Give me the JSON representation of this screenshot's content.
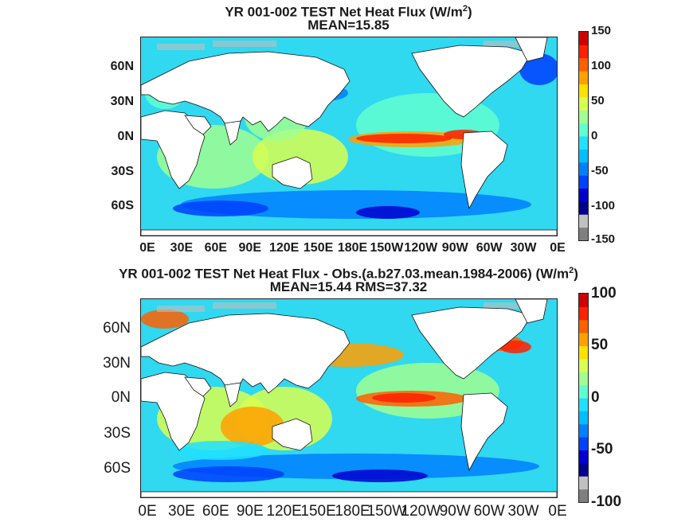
{
  "panels": [
    {
      "title_main": "YR 001-002 TEST  Net Heat Flux (W/m",
      "title_sup": "2",
      "title_close": ")",
      "subtitle": "MEAN=15.85",
      "y_ticks": [
        "60N",
        "30N",
        "0N",
        "30S",
        "60S"
      ],
      "x_ticks": [
        "0E",
        "30E",
        "60E",
        "90E",
        "120E",
        "150E",
        "180E",
        "150W",
        "120W",
        "90W",
        "60W",
        "30W",
        "0E"
      ],
      "colorbar_ticks": [
        "150",
        "100",
        "50",
        "0",
        "-50",
        "-100",
        "-150"
      ],
      "colorbar_range": [
        -150,
        150
      ],
      "mean": 15.85
    },
    {
      "title_main": "YR 001-002 TEST  Net Heat Flux - Obs.(a.b27.03.mean.1984-2006) (W/m",
      "title_sup": "2",
      "title_close": ")",
      "subtitle": "MEAN=15.44 RMS=37.32",
      "y_ticks": [
        "60N",
        "30N",
        "0N",
        "30S",
        "60S"
      ],
      "x_ticks": [
        "0E",
        "30E",
        "60E",
        "90E",
        "120E",
        "150E",
        "180E",
        "150W",
        "120W",
        "90W",
        "60W",
        "30W",
        "0E"
      ],
      "colorbar_ticks": [
        "100",
        "50",
        "0",
        "-50",
        "-100"
      ],
      "colorbar_range": [
        -100,
        100
      ],
      "mean": 15.44,
      "rms": 37.32
    }
  ],
  "colormap": [
    "#7f7f7f",
    "#c0c0c0",
    "#00008f",
    "#0000d0",
    "#0040ff",
    "#0080ff",
    "#00bfff",
    "#20e0ff",
    "#60ffd0",
    "#a0ff90",
    "#d8ff50",
    "#ffe000",
    "#ffa000",
    "#ff6000",
    "#ff2000",
    "#d00000"
  ],
  "land_color": "#ffffff",
  "ocean_base_color": "#30d8f0"
}
